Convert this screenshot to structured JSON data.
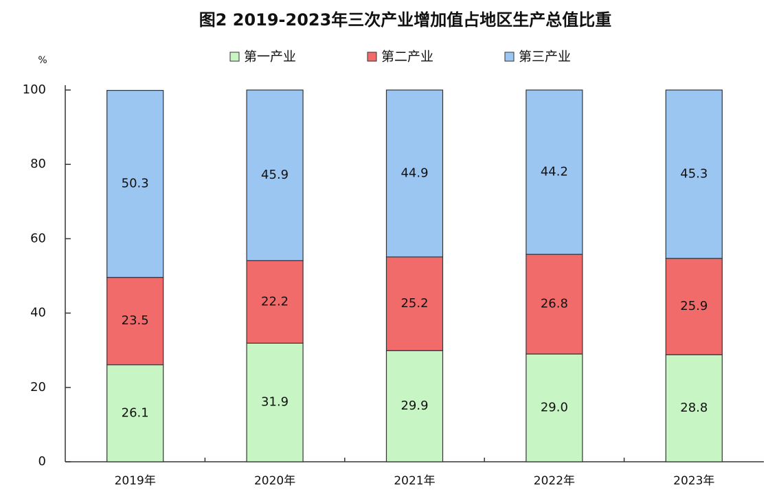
{
  "chart_data": {
    "type": "stacked_bar",
    "title": "图2 2019-2023年三次产业增加值占地区生产总值比重",
    "y_label": "%",
    "categories": [
      "2019年",
      "2020年",
      "2021年",
      "2022年",
      "2023年"
    ],
    "series": [
      {
        "name": "第一产业",
        "color": "#c8f5c4",
        "values": [
          26.1,
          31.9,
          29.9,
          29.0,
          28.8
        ],
        "value_labels": [
          "26.1",
          "31.9",
          "29.9",
          "29.0",
          "28.8"
        ]
      },
      {
        "name": "第二产业",
        "color": "#f26b6b",
        "values": [
          23.5,
          22.2,
          25.2,
          26.8,
          25.9
        ],
        "value_labels": [
          "23.5",
          "22.2",
          "25.2",
          "26.8",
          "25.9"
        ]
      },
      {
        "name": "第三产业",
        "color": "#9cc6f2",
        "values": [
          50.3,
          45.9,
          44.9,
          44.2,
          45.3
        ],
        "value_labels": [
          "50.3",
          "45.9",
          "44.9",
          "44.2",
          "45.3"
        ]
      }
    ],
    "ylim": [
      0,
      100
    ],
    "yticks": [
      0,
      20,
      40,
      60,
      80,
      100
    ],
    "grid": false,
    "legend": "top"
  }
}
